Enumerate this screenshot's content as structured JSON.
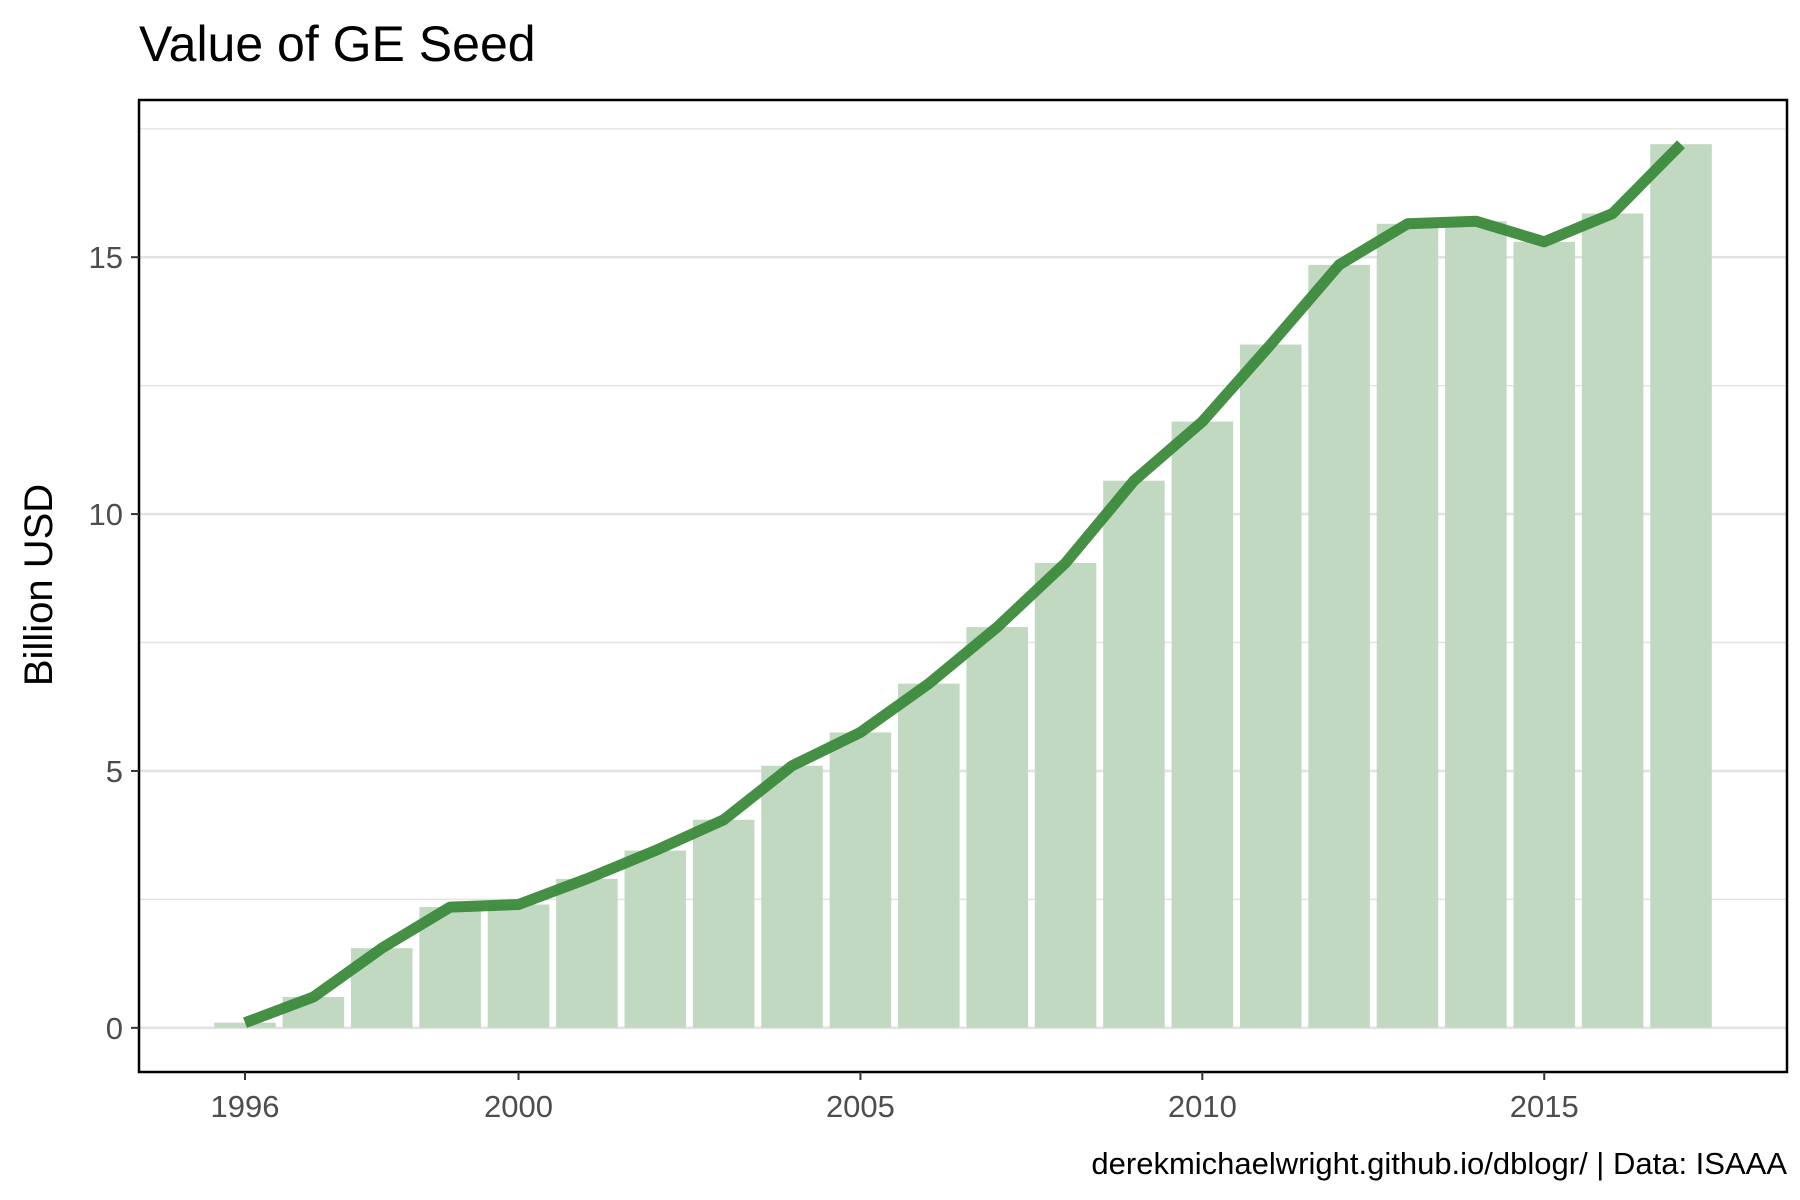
{
  "chart_data": {
    "type": "bar",
    "title": "Value of GE Seed",
    "xlabel": "",
    "ylabel": "Billion USD",
    "caption": "derekmichaelwright.github.io/dblogr/ | Data: ISAAA",
    "x": [
      1996,
      1997,
      1998,
      1999,
      2000,
      2001,
      2002,
      2003,
      2004,
      2005,
      2006,
      2007,
      2008,
      2009,
      2010,
      2011,
      2012,
      2013,
      2014,
      2015,
      2016,
      2017
    ],
    "series": [
      {
        "values": [
          0.1,
          0.6,
          1.55,
          2.35,
          2.4,
          2.9,
          3.45,
          4.05,
          5.1,
          5.75,
          6.7,
          7.8,
          9.05,
          10.65,
          11.8,
          13.3,
          14.85,
          15.65,
          15.7,
          15.3,
          15.85,
          17.2
        ]
      }
    ],
    "xticks": [
      1996,
      2000,
      2005,
      2010,
      2015
    ],
    "yticks": [
      0,
      5,
      10,
      15
    ],
    "xlim": [
      1994.45,
      2018.55
    ],
    "ylim": [
      -0.86,
      18.06
    ],
    "grid": true,
    "colors": {
      "bar": "#c1d9c1",
      "line": "#3b8a3b",
      "grid": "#e3e3e3",
      "panel_border": "#000000"
    }
  }
}
